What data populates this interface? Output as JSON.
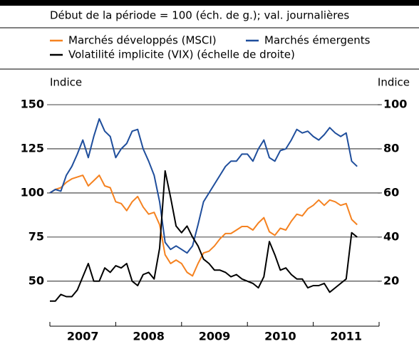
{
  "chart_data": {
    "type": "line",
    "subtitle": "Début de la période = 100 (éch. de g.); val. journalières",
    "y_label": "Indice",
    "y2_label": "Indice",
    "xlim": [
      2007,
      2012
    ],
    "xticks": [
      2007,
      2008,
      2009,
      2010,
      2011,
      2012
    ],
    "x_labels": [
      {
        "value": 2007.5,
        "label": "2007"
      },
      {
        "value": 2008.5,
        "label": "2008"
      },
      {
        "value": 2009.5,
        "label": "2009"
      },
      {
        "value": 2010.5,
        "label": "2010"
      },
      {
        "value": 2011.5,
        "label": "2011"
      }
    ],
    "ylim": [
      35,
      150
    ],
    "yticks": [
      50,
      75,
      100,
      125,
      150
    ],
    "y2lim": [
      8,
      100
    ],
    "y2ticks": [
      20,
      40,
      60,
      80,
      100
    ],
    "grid": true,
    "x": [
      2007.0,
      2007.083,
      2007.167,
      2007.25,
      2007.333,
      2007.417,
      2007.5,
      2007.583,
      2007.667,
      2007.75,
      2007.833,
      2007.917,
      2008.0,
      2008.083,
      2008.167,
      2008.25,
      2008.333,
      2008.417,
      2008.5,
      2008.583,
      2008.667,
      2008.75,
      2008.833,
      2008.917,
      2009.0,
      2009.083,
      2009.167,
      2009.25,
      2009.333,
      2009.417,
      2009.5,
      2009.583,
      2009.667,
      2009.75,
      2009.833,
      2009.917,
      2010.0,
      2010.083,
      2010.167,
      2010.25,
      2010.333,
      2010.417,
      2010.5,
      2010.583,
      2010.667,
      2010.75,
      2010.833,
      2010.917,
      2011.0,
      2011.083,
      2011.167,
      2011.25,
      2011.333,
      2011.417,
      2011.5,
      2011.583,
      2011.667
    ],
    "series": [
      {
        "name": "Marchés développés (MSCI)",
        "color": "#f58220",
        "axis": "y",
        "values": [
          100,
          102,
          103,
          106,
          108,
          109,
          110,
          104,
          107,
          110,
          104,
          103,
          95,
          94,
          90,
          95,
          98,
          92,
          88,
          89,
          82,
          65,
          60,
          62,
          60,
          55,
          53,
          60,
          66,
          67,
          70,
          74,
          77,
          77,
          79,
          81,
          81,
          79,
          83,
          86,
          78,
          76,
          80,
          79,
          84,
          88,
          87,
          91,
          93,
          96,
          93,
          96,
          95,
          93,
          94,
          85,
          82
        ]
      },
      {
        "name": "Marchés émergents",
        "color": "#1f4e9c",
        "axis": "y",
        "values": [
          100,
          102,
          101,
          110,
          115,
          122,
          130,
          120,
          132,
          142,
          135,
          132,
          120,
          125,
          128,
          135,
          136,
          125,
          118,
          110,
          95,
          72,
          68,
          70,
          68,
          66,
          70,
          82,
          95,
          100,
          105,
          110,
          115,
          118,
          118,
          122,
          122,
          118,
          125,
          130,
          120,
          118,
          124,
          125,
          130,
          136,
          134,
          135,
          132,
          130,
          133,
          137,
          134,
          132,
          134,
          118,
          115
        ]
      },
      {
        "name": "Volatilité implicite (VIX) (échelle de droite)",
        "color": "#000000",
        "axis": "y2",
        "values": [
          11,
          11,
          14,
          13,
          13,
          16,
          22,
          28,
          20,
          20,
          26,
          24,
          27,
          26,
          28,
          20,
          18,
          23,
          24,
          21,
          35,
          70,
          58,
          45,
          42,
          45,
          40,
          36,
          30,
          28,
          25,
          25,
          24,
          22,
          23,
          21,
          20,
          19,
          17,
          22,
          38,
          32,
          25,
          26,
          23,
          21,
          21,
          17,
          18,
          18,
          19,
          15,
          17,
          19,
          21,
          42,
          40
        ]
      }
    ]
  }
}
